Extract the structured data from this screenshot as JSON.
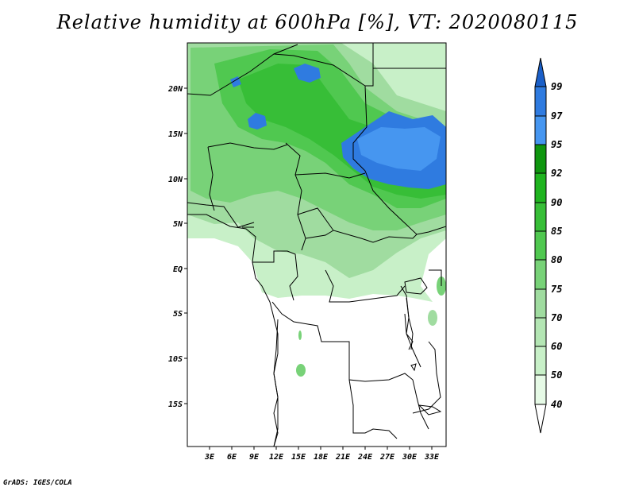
{
  "title": "Relative humidity at 600hPa [%], VT: 2020080115",
  "credit": "GrADS: IGES/COLA",
  "lon_ticks": [
    "3E",
    "6E",
    "9E",
    "12E",
    "15E",
    "18E",
    "21E",
    "24E",
    "27E",
    "30E",
    "33E"
  ],
  "lat_ticks": [
    "20N",
    "15N",
    "10N",
    "5N",
    "EQ",
    "5S",
    "10S",
    "15S"
  ],
  "colorbar": {
    "levels": [
      "40",
      "50",
      "60",
      "70",
      "75",
      "80",
      "85",
      "90",
      "92",
      "95",
      "97",
      "99"
    ],
    "colors": [
      "#ffffff",
      "#e6fae6",
      "#c8f0c8",
      "#b4e6b4",
      "#a0dca0",
      "#78d278",
      "#50c850",
      "#37be37",
      "#1fb41f",
      "#0f960f",
      "#4696f0",
      "#2f7be0",
      "#1a5fc8"
    ]
  },
  "map": {
    "variable": "Relative humidity",
    "level": "600hPa",
    "units": "%",
    "valid_time": "2020080115"
  }
}
